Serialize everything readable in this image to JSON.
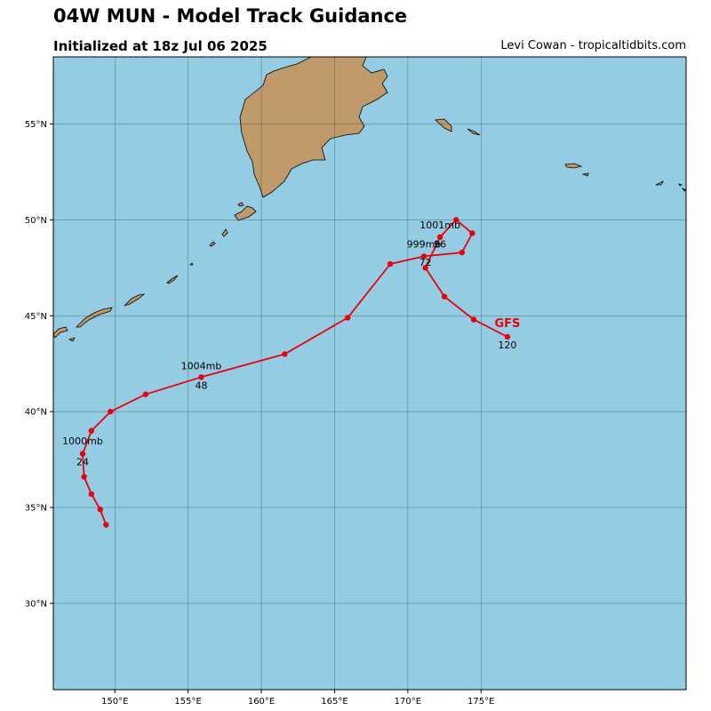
{
  "header": {
    "title": "04W MUN - Model Track Guidance",
    "subtitle": "Initialized at 18z Jul 06 2025",
    "credit": "Levi Cowan - tropicaltidbits.com"
  },
  "map": {
    "extent": {
      "lon_min": 145.8,
      "lon_max": 189.0,
      "lat_min": 25.5,
      "lat_max": 58.5
    },
    "ocean_color": "#94CDE3",
    "land_color": "#C0996B",
    "grid_color": "#2F4F4F"
  },
  "axes": {
    "lat_ticks": [
      {
        "value": 30,
        "label": "30°N"
      },
      {
        "value": 35,
        "label": "35°N"
      },
      {
        "value": 40,
        "label": "40°N"
      },
      {
        "value": 45,
        "label": "45°N"
      },
      {
        "value": 50,
        "label": "50°N"
      },
      {
        "value": 55,
        "label": "55°N"
      }
    ],
    "lon_ticks": [
      {
        "value": 150,
        "label": "150°E"
      },
      {
        "value": 155,
        "label": "155°E"
      },
      {
        "value": 160,
        "label": "160°E"
      },
      {
        "value": 165,
        "label": "165°E"
      },
      {
        "value": 170,
        "label": "170°E"
      },
      {
        "value": 175,
        "label": "175°E"
      }
    ]
  },
  "track": {
    "model": "GFS",
    "color": "#E8000B",
    "points": [
      {
        "lon": 149.4,
        "lat": 34.1
      },
      {
        "lon": 149.0,
        "lat": 34.9
      },
      {
        "lon": 148.4,
        "lat": 35.7
      },
      {
        "lon": 147.9,
        "lat": 36.6
      },
      {
        "lon": 147.8,
        "lat": 37.8
      },
      {
        "lon": 148.4,
        "lat": 39.0
      },
      {
        "lon": 149.7,
        "lat": 40.0
      },
      {
        "lon": 152.1,
        "lat": 40.9
      },
      {
        "lon": 155.9,
        "lat": 41.8
      },
      {
        "lon": 161.6,
        "lat": 43.0
      },
      {
        "lon": 165.9,
        "lat": 44.9
      },
      {
        "lon": 168.8,
        "lat": 47.7
      },
      {
        "lon": 171.1,
        "lat": 48.1
      },
      {
        "lon": 173.7,
        "lat": 48.3
      },
      {
        "lon": 174.4,
        "lat": 49.3
      },
      {
        "lon": 173.3,
        "lat": 50.0
      },
      {
        "lon": 172.2,
        "lat": 49.1
      },
      {
        "lon": 171.2,
        "lat": 47.5
      },
      {
        "lon": 172.5,
        "lat": 46.0
      },
      {
        "lon": 174.5,
        "lat": 44.8
      },
      {
        "lon": 176.8,
        "lat": 43.9
      }
    ],
    "labels": [
      {
        "text": "1000mb",
        "lon": 147.8,
        "lat": 38.3,
        "anchor": "middle"
      },
      {
        "text": "24",
        "lon": 147.8,
        "lat": 37.2,
        "anchor": "middle"
      },
      {
        "text": "1004mb",
        "lon": 155.9,
        "lat": 42.2,
        "anchor": "middle"
      },
      {
        "text": "48",
        "lon": 155.9,
        "lat": 41.2,
        "anchor": "middle"
      },
      {
        "text": "999mb",
        "lon": 171.1,
        "lat": 48.55,
        "anchor": "middle"
      },
      {
        "text": "72",
        "lon": 171.2,
        "lat": 47.6,
        "anchor": "middle"
      },
      {
        "text": "1001mb",
        "lon": 172.2,
        "lat": 49.55,
        "anchor": "middle"
      },
      {
        "text": "96",
        "lon": 172.2,
        "lat": 48.55,
        "anchor": "middle"
      },
      {
        "text": "120",
        "lon": 176.8,
        "lat": 43.3,
        "anchor": "middle"
      }
    ],
    "model_label": {
      "lon": 176.8,
      "lat": 44.4
    }
  }
}
